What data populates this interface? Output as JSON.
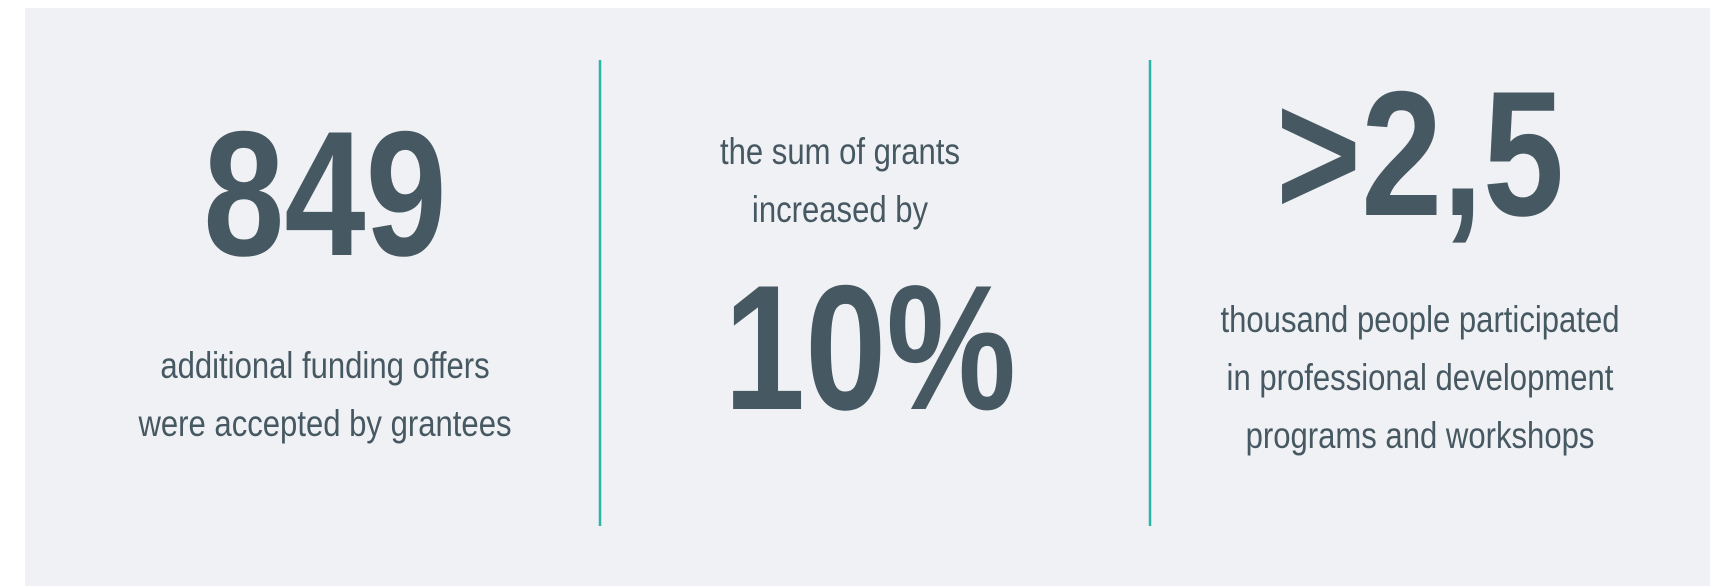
{
  "stats": [
    {
      "figure": "849",
      "caption": [
        "additional funding offers",
        "were accepted by grantees"
      ]
    },
    {
      "intro": [
        "the sum of grants",
        "increased by"
      ],
      "figure": "10%"
    },
    {
      "figure": ">2,5",
      "caption": [
        "thousand people participated",
        "in professional development",
        "programs and workshops"
      ]
    }
  ]
}
